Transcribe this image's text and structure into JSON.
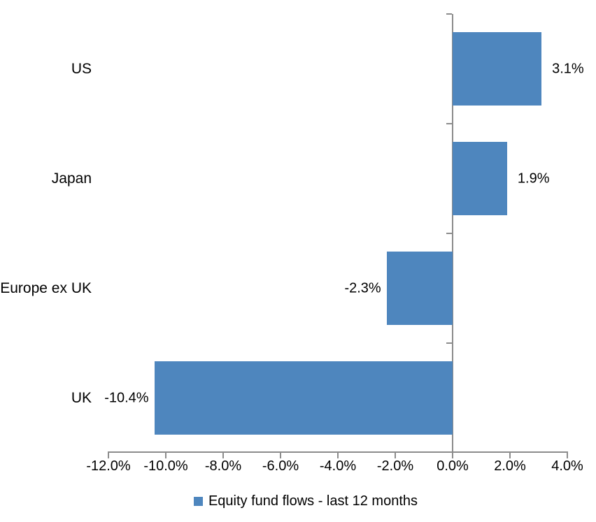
{
  "chart_data": {
    "type": "bar",
    "orientation": "horizontal",
    "title": "",
    "categories": [
      "US",
      "Japan",
      "Europe ex UK",
      "UK"
    ],
    "series": [
      {
        "name": "Equity fund flows - last 12 months",
        "values": [
          3.1,
          1.9,
          -2.3,
          -10.4
        ]
      }
    ],
    "value_labels": [
      "3.1%",
      "1.9%",
      "-2.3%",
      "-10.4%"
    ],
    "xlim": [
      -12,
      4
    ],
    "x_ticks": [
      -12,
      -10,
      -8,
      -6,
      -4,
      -2,
      0,
      2,
      4
    ],
    "x_tick_labels": [
      "-12.0%",
      "-10.0%",
      "-8.0%",
      "-6.0%",
      "-4.0%",
      "-2.0%",
      "0.0%",
      "2.0%",
      "4.0%"
    ],
    "grid": false,
    "legend": {
      "label": "Equity fund flows - last 12 months",
      "position": "bottom"
    },
    "colors": {
      "bar": "#4e86be",
      "axis": "#8c8c8c",
      "text": "#000000"
    }
  }
}
